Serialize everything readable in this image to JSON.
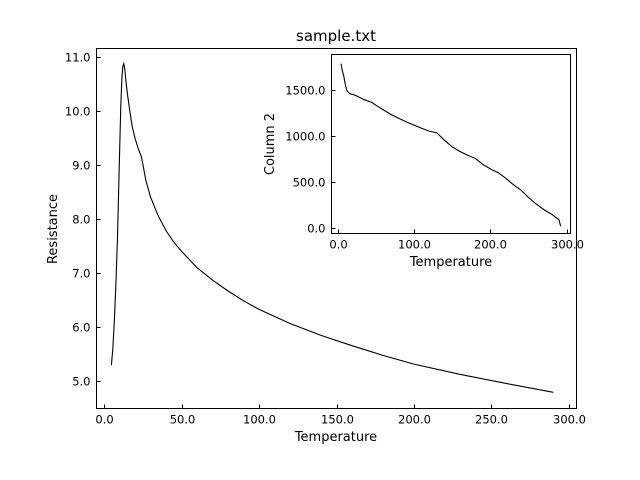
{
  "chart_data": [
    {
      "type": "line",
      "title": "sample.txt",
      "xlabel": "Temperature",
      "ylabel": "Resistance",
      "xlim": [
        -5,
        305
      ],
      "ylim": [
        4.5,
        11.15
      ],
      "xticks": [
        0,
        50,
        100,
        150,
        200,
        250,
        300
      ],
      "xtick_labels": [
        "0.0",
        "50.0",
        "100.0",
        "150.0",
        "200.0",
        "250.0",
        "300.0"
      ],
      "yticks": [
        5,
        6,
        7,
        8,
        9,
        10,
        11
      ],
      "ytick_labels": [
        "5.0",
        "6.0",
        "7.0",
        "8.0",
        "9.0",
        "10.0",
        "11.0"
      ],
      "grid": false,
      "series": [
        {
          "x": [
            4.6,
            5.5,
            6.5,
            7.5,
            8.5,
            9.3,
            10.0,
            10.7,
            11.4,
            12.0,
            12.6,
            13.2,
            14.0,
            15.0,
            16.5,
            18.0,
            20.0,
            22.0,
            24.0,
            25.0,
            27.0,
            30.0,
            35.0,
            40.0,
            45.0,
            50.0,
            60.0,
            70.0,
            80.0,
            90.0,
            100.0,
            120.0,
            140.0,
            160.0,
            180.0,
            200.0,
            230.0,
            260.0,
            290.0
          ],
          "y": [
            5.3,
            5.6,
            6.1,
            6.8,
            7.6,
            8.5,
            9.3,
            10.1,
            10.6,
            10.82,
            10.87,
            10.78,
            10.55,
            10.3,
            10.0,
            9.72,
            9.48,
            9.3,
            9.15,
            9.0,
            8.7,
            8.4,
            8.05,
            7.78,
            7.57,
            7.4,
            7.1,
            6.87,
            6.67,
            6.49,
            6.33,
            6.07,
            5.85,
            5.66,
            5.48,
            5.32,
            5.13,
            4.96,
            4.8
          ]
        }
      ]
    },
    {
      "type": "line",
      "title": "",
      "xlabel": "Temperature",
      "ylabel": "Column 2",
      "xlim": [
        -8,
        305
      ],
      "ylim": [
        -60,
        1880
      ],
      "xticks": [
        0,
        100,
        200,
        300
      ],
      "xtick_labels": [
        "0.0",
        "100.0",
        "200.0",
        "300.0"
      ],
      "yticks": [
        0,
        500,
        1000,
        1500
      ],
      "ytick_labels": [
        "0.0",
        "500.0",
        "1000.0",
        "1500.0"
      ],
      "grid": false,
      "series": [
        {
          "x": [
            4.5,
            6,
            8,
            10,
            12,
            14,
            16,
            18,
            20,
            25,
            30,
            35,
            40,
            45,
            50,
            60,
            70,
            80,
            90,
            100,
            110,
            120,
            130,
            140,
            150,
            160,
            170,
            180,
            190,
            200,
            205,
            210,
            220,
            230,
            240,
            250,
            260,
            270,
            280,
            285,
            290,
            292
          ],
          "y": [
            1780,
            1710,
            1650,
            1560,
            1490,
            1470,
            1455,
            1450,
            1448,
            1430,
            1410,
            1390,
            1375,
            1360,
            1330,
            1280,
            1230,
            1190,
            1150,
            1115,
            1080,
            1050,
            1030,
            950,
            880,
            830,
            790,
            755,
            690,
            640,
            620,
            600,
            540,
            470,
            410,
            330,
            260,
            200,
            150,
            120,
            90,
            20
          ]
        }
      ]
    }
  ]
}
